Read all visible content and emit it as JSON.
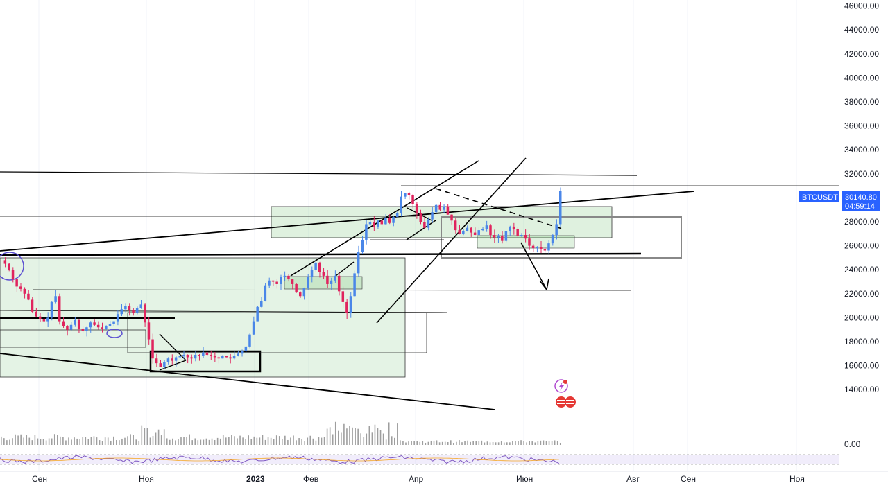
{
  "chart_data": {
    "type": "candlestick",
    "symbol": "BTCUSDT",
    "last_price": "30140.80",
    "countdown": "04:59:14",
    "y_axis": {
      "ticks": [
        "46000.00",
        "44000.00",
        "42000.00",
        "40000.00",
        "38000.00",
        "36000.00",
        "34000.00",
        "32000.00",
        "30000.00",
        "28000.00",
        "26000.00",
        "24000.00",
        "22000.00",
        "20000.00",
        "18000.00",
        "16000.00",
        "14000.00"
      ],
      "range": [
        12000,
        46500
      ]
    },
    "x_axis": {
      "ticks": [
        "Сен",
        "Ноя",
        "2023",
        "Фев",
        "Апр",
        "Июн",
        "Авг",
        "Сен",
        "Ноя"
      ]
    },
    "volume_label": "0.00",
    "price_path": [
      [
        24800,
        24500,
        24000,
        23200,
        22600,
        22400,
        22000,
        21500,
        20500,
        20100,
        19900,
        19700,
        20000,
        21300,
        21800,
        19700,
        19300,
        19000,
        19400,
        19800,
        19100,
        18900,
        19200,
        19600,
        19400,
        19200,
        19100,
        19300,
        19500,
        19700,
        20300,
        20700,
        21000,
        20600,
        20400,
        20800,
        21100,
        19600,
        18200,
        16600,
        16200,
        15900,
        16300,
        16600,
        16400,
        16700,
        16800,
        16900,
        16700,
        16600,
        16900,
        16800,
        17100,
        16900,
        16800,
        16700,
        16600,
        16800,
        16700,
        16600,
        16800,
        17000,
        17200,
        17600,
        18600,
        19700,
        20900,
        21400,
        22700,
        23100,
        23000,
        22800,
        23400,
        23500,
        23200,
        22800,
        22100,
        21800,
        22500,
        23400,
        24000,
        24600,
        23800,
        23500,
        22800,
        23100,
        23500,
        22200,
        21300,
        20400,
        21800,
        23700,
        25500,
        26500,
        27800,
        28000,
        27600,
        28100,
        27800,
        28300,
        27900,
        28400,
        28700,
        30100,
        30400,
        30200,
        29500,
        28700,
        28000,
        27500,
        28200,
        28800,
        29400,
        29000,
        29300,
        28600,
        28100,
        27300,
        27000,
        27200,
        27500,
        27100,
        26900,
        27300,
        27400,
        27700,
        26900,
        26700,
        26800,
        26400,
        27200,
        27600,
        27400,
        26800,
        26900,
        26600,
        26000,
        25800,
        25900,
        25700,
        25600,
        26200,
        26900,
        27800,
        30600
      ]
    ]
  }
}
